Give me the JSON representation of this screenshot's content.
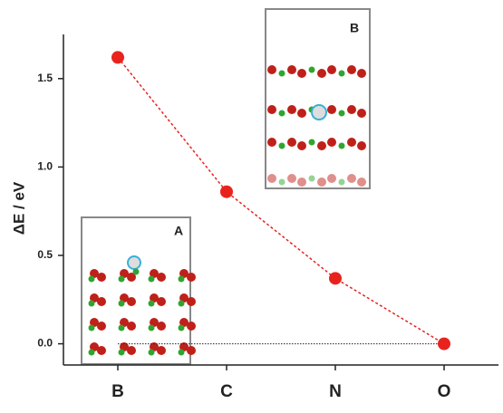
{
  "chart_data": {
    "type": "line",
    "ylabel": "ΔE / eV",
    "categories": [
      "B",
      "C",
      "N",
      "O"
    ],
    "series": [
      {
        "color": "#e8231e",
        "values": [
          1.62,
          0.86,
          0.37,
          0.0
        ]
      }
    ],
    "ylim": [
      -0.12,
      1.75
    ],
    "yticks": [
      {
        "value": 0,
        "label": "0.0"
      },
      0.5,
      {
        "value": 1,
        "label": "1.0"
      },
      1.5
    ],
    "hline": 0,
    "insets": [
      {
        "label": "A"
      },
      {
        "label": "B"
      }
    ]
  }
}
